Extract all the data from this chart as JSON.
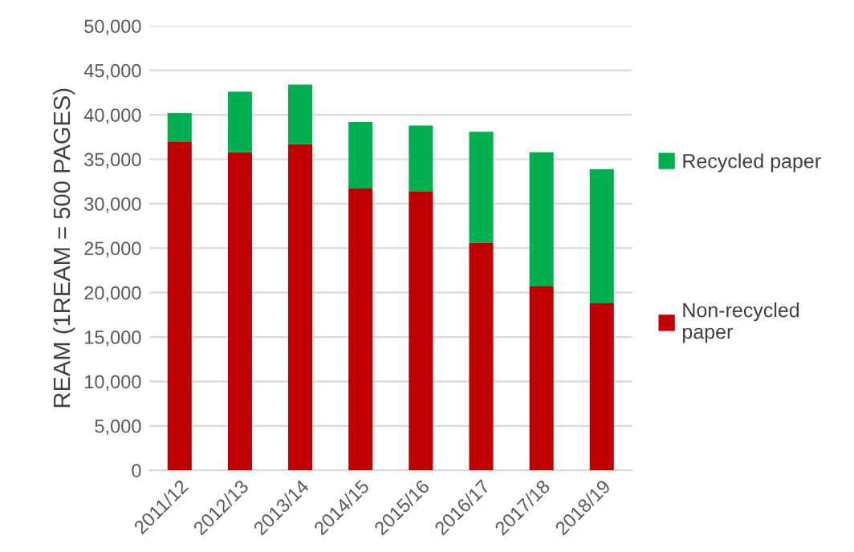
{
  "chart_data": {
    "type": "bar",
    "stacked": true,
    "ylabel": "REAM (1REAM = 500 PAGES)",
    "categories": [
      "2011/12",
      "2012/13",
      "2013/14",
      "2014/15",
      "2015/16",
      "2016/17",
      "2017/18",
      "2018/19"
    ],
    "series": [
      {
        "name": "Non-recycled\npaper",
        "color": "#c00000",
        "values": [
          37000,
          35800,
          36700,
          31700,
          31400,
          25600,
          20700,
          18800
        ]
      },
      {
        "name": "Recycled paper",
        "color": "#00b050",
        "values": [
          3200,
          6800,
          6700,
          7500,
          7400,
          12500,
          15100,
          15100
        ]
      }
    ],
    "ylim": [
      0,
      50000
    ],
    "yticks": [
      {
        "value": 0,
        "label": "0"
      },
      {
        "value": 5000,
        "label": "5,000"
      },
      {
        "value": 10000,
        "label": "10,000"
      },
      {
        "value": 15000,
        "label": "15,000"
      },
      {
        "value": 20000,
        "label": "20,000"
      },
      {
        "value": 25000,
        "label": "25,000"
      },
      {
        "value": 30000,
        "label": "30,000"
      },
      {
        "value": 35000,
        "label": "35,000"
      },
      {
        "value": 40000,
        "label": "40,000"
      },
      {
        "value": 45000,
        "label": "45,000"
      },
      {
        "value": 50000,
        "label": "50,000"
      }
    ],
    "grid": "y",
    "legend": "right"
  }
}
